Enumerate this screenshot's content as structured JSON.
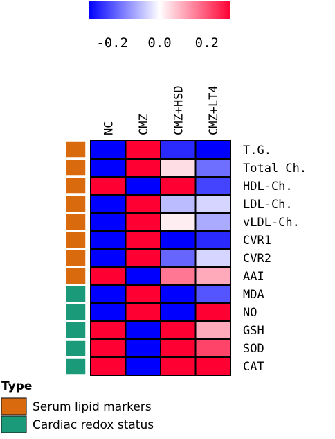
{
  "colors": {
    "low": "#0000ff",
    "mid": "#ffffff",
    "high": "#ff0033",
    "type_serum": "#d96a0e",
    "type_redox": "#1b9a7a",
    "cell_border": "#000000"
  },
  "chart_data": {
    "type": "heatmap",
    "columns": [
      "NC",
      "CMZ",
      "CMZ+HSD",
      "CMZ+LT4"
    ],
    "rows": [
      "T.G.",
      "Total Ch.",
      "HDL-Ch.",
      "LDL-Ch.",
      "vLDL-Ch.",
      "CVR1",
      "CVR2",
      "AAI",
      "MDA",
      "NO",
      "GSH",
      "SOD",
      "CAT"
    ],
    "row_types": [
      "serum",
      "serum",
      "serum",
      "serum",
      "serum",
      "serum",
      "serum",
      "serum",
      "redox",
      "redox",
      "redox",
      "redox",
      "redox"
    ],
    "values": [
      [
        -0.3,
        0.3,
        -0.25,
        -0.3
      ],
      [
        -0.3,
        0.3,
        0.04,
        -0.17
      ],
      [
        0.3,
        -0.3,
        0.3,
        -0.22
      ],
      [
        -0.3,
        0.3,
        -0.08,
        -0.05
      ],
      [
        -0.3,
        0.3,
        0.02,
        -0.1
      ],
      [
        -0.3,
        0.3,
        -0.3,
        -0.25
      ],
      [
        -0.3,
        0.3,
        -0.18,
        -0.05
      ],
      [
        0.3,
        -0.3,
        0.16,
        0.1
      ],
      [
        -0.3,
        0.3,
        -0.3,
        -0.2
      ],
      [
        -0.3,
        0.3,
        -0.3,
        0.3
      ],
      [
        0.3,
        -0.3,
        0.3,
        0.1
      ],
      [
        0.3,
        -0.3,
        0.3,
        0.22
      ],
      [
        0.3,
        -0.3,
        0.3,
        0.3
      ]
    ],
    "color_scale": {
      "range": [
        -0.3,
        0.3
      ],
      "ticks": [
        -0.2,
        0.0,
        0.2
      ],
      "tick_labels": [
        "-0.2",
        "0.0",
        "0.2"
      ]
    },
    "legend": {
      "title": "Type",
      "entries": [
        {
          "key": "serum",
          "label": "Serum lipid markers"
        },
        {
          "key": "redox",
          "label": "Cardiac redox status"
        }
      ]
    }
  }
}
